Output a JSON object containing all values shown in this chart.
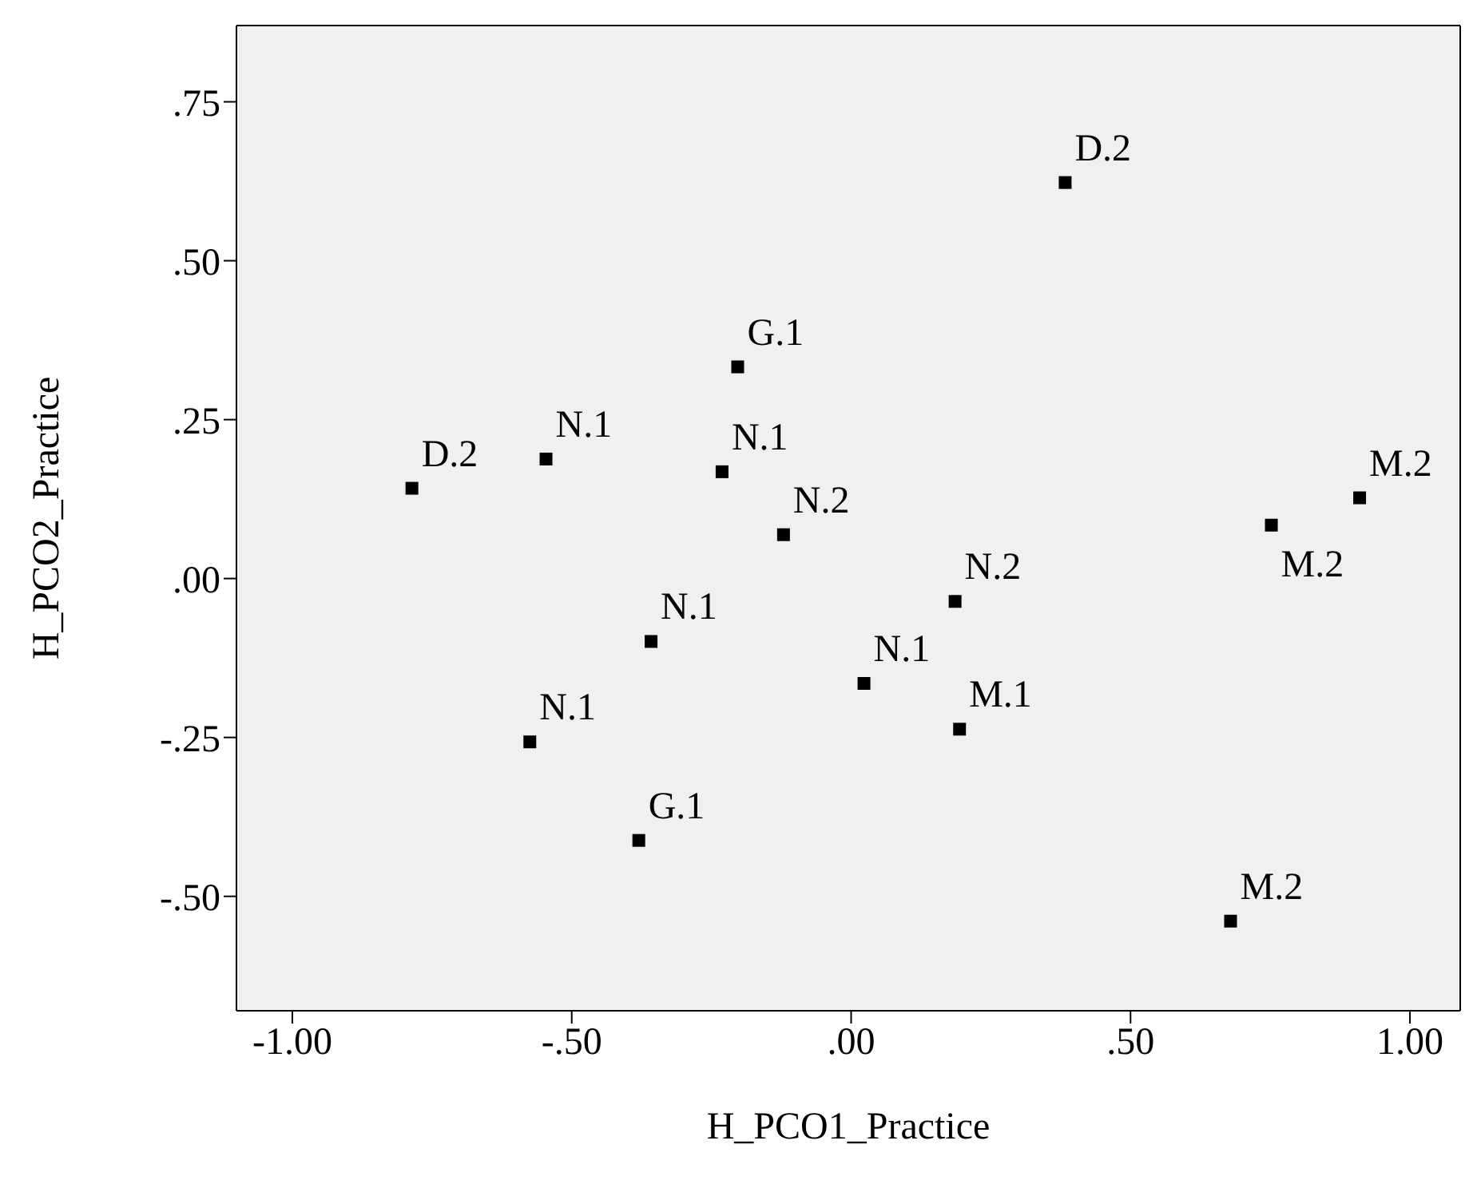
{
  "chart_data": {
    "type": "scatter",
    "xlabel": "H_PCO1_Practice",
    "ylabel": "H_PCO2_Practice",
    "marker": "square",
    "legend": false,
    "xlim": [
      -1.1,
      1.09
    ],
    "ylim": [
      -0.68,
      0.87
    ],
    "xticks": [
      {
        "value": -1,
        "label": "-1.00"
      },
      {
        "value": -0.5,
        "label": "-.50"
      },
      {
        "value": 0,
        "label": ".00"
      },
      {
        "value": 0.5,
        "label": ".50"
      },
      {
        "value": 1,
        "label": "1.00"
      }
    ],
    "yticks": [
      {
        "value": -0.5,
        "label": "-.50"
      },
      {
        "value": -0.25,
        "label": "-.25"
      },
      {
        "value": 0,
        "label": ".00"
      },
      {
        "value": 0.25,
        "label": ".25"
      },
      {
        "value": 0.5,
        "label": ".50"
      },
      {
        "value": 0.75,
        "label": ".75"
      }
    ],
    "series": [
      {
        "color": "#000000",
        "x": [
          -0.786,
          -0.546,
          -0.203,
          -0.231,
          -0.121,
          0.383,
          0.91,
          0.752,
          0.186,
          -0.358,
          0.023,
          0.194,
          -0.575,
          -0.38,
          0.679
        ],
        "values": [
          0.142,
          0.188,
          0.333,
          0.168,
          0.069,
          0.623,
          0.127,
          0.084,
          -0.036,
          -0.099,
          -0.165,
          -0.237,
          -0.257,
          -0.412,
          -0.539
        ]
      }
    ],
    "annotations": [
      {
        "text": "D.2",
        "x": -0.786,
        "y": 0.142
      },
      {
        "text": "N.1",
        "x": -0.546,
        "y": 0.188
      },
      {
        "text": "G.1",
        "x": -0.203,
        "y": 0.333
      },
      {
        "text": "N.1",
        "x": -0.231,
        "y": 0.168
      },
      {
        "text": "N.2",
        "x": -0.121,
        "y": 0.069
      },
      {
        "text": "D.2",
        "x": 0.383,
        "y": 0.623
      },
      {
        "text": "M.2",
        "x": 0.91,
        "y": 0.127
      },
      {
        "text": "M.2",
        "x": 0.752,
        "y": 0.084
      },
      {
        "text": "N.2",
        "x": 0.186,
        "y": -0.036
      },
      {
        "text": "N.1",
        "x": -0.358,
        "y": -0.099
      },
      {
        "text": "N.1",
        "x": 0.023,
        "y": -0.165
      },
      {
        "text": "M.1",
        "x": 0.194,
        "y": -0.237
      },
      {
        "text": "N.1",
        "x": -0.575,
        "y": -0.257
      },
      {
        "text": "G.1",
        "x": -0.38,
        "y": -0.412
      },
      {
        "text": "M.2",
        "x": 0.679,
        "y": -0.539
      }
    ]
  }
}
